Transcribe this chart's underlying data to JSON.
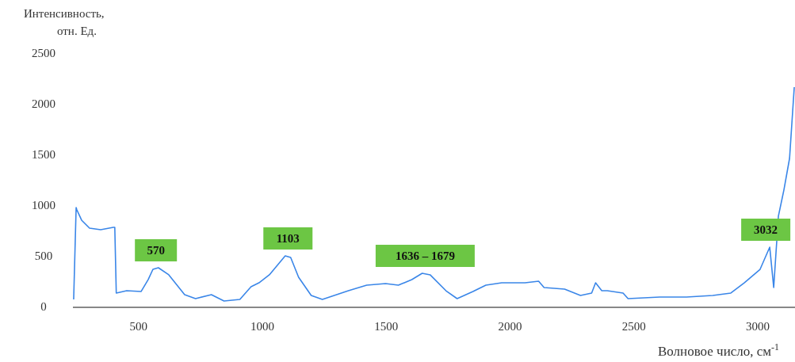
{
  "chart_data": {
    "type": "line",
    "xlabel": "Волновое число, см$^{-1}$",
    "ylabel": "Интенсивность, отн. Ед.",
    "xlim": [
      235,
      3150
    ],
    "xticks": [
      500,
      1000,
      1500,
      2000,
      2500,
      3000
    ],
    "ylim": [
      0,
      2500
    ],
    "yticks": [
      0,
      500,
      1000,
      1500,
      2000,
      2500
    ],
    "grid": false,
    "marker": "none",
    "line_style": "solid",
    "series": [
      {
        "color": "#3a86e8",
        "x": [
          238,
          248,
          251,
          270,
          302,
          347,
          398,
          404,
          410,
          452,
          510,
          539,
          558,
          580,
          622,
          686,
          730,
          794,
          845,
          909,
          954,
          986,
          1028,
          1092,
          1114,
          1146,
          1197,
          1242,
          1347,
          1421,
          1497,
          1549,
          1603,
          1645,
          1677,
          1741,
          1786,
          1850,
          1902,
          1966,
          2060,
          2115,
          2137,
          2220,
          2284,
          2329,
          2345,
          2370,
          2392,
          2456,
          2476,
          2604,
          2712,
          2818,
          2891,
          2945,
          3009,
          3048,
          3064,
          3083,
          3105,
          3128,
          3147
        ],
        "values": [
          70,
          977,
          953,
          852,
          773,
          758,
          781,
          781,
          133,
          156,
          148,
          266,
          367,
          383,
          313,
          117,
          78,
          117,
          55,
          70,
          195,
          234,
          313,
          500,
          484,
          289,
          109,
          70,
          156,
          211,
          226,
          211,
          266,
          328,
          313,
          156,
          78,
          148,
          211,
          234,
          234,
          250,
          188,
          172,
          109,
          133,
          234,
          156,
          156,
          133,
          78,
          94,
          94,
          109,
          133,
          234,
          367,
          586,
          188,
          891,
          1148,
          1461,
          2164
        ]
      }
    ],
    "annotations": [
      {
        "text": "570",
        "x": 570,
        "y": 383
      },
      {
        "text": "1103",
        "x": 1103,
        "y": 500
      },
      {
        "text": "1636 – 1679",
        "x": 1657,
        "y": 328
      },
      {
        "text": "3032",
        "x": 3032,
        "y": 586
      }
    ]
  }
}
